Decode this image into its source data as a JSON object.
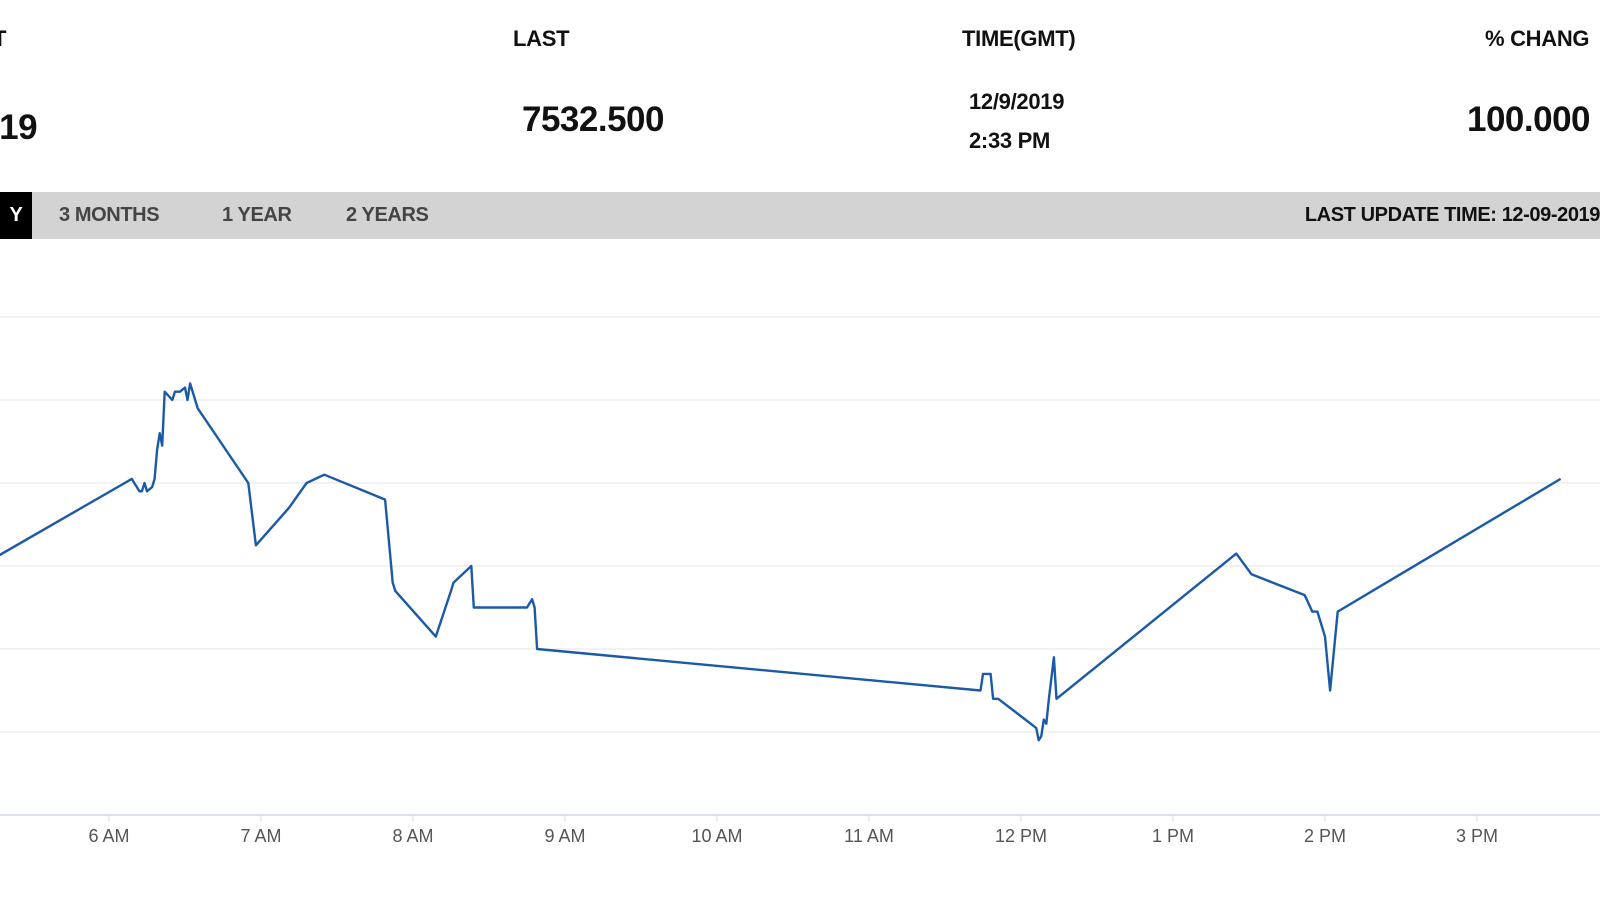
{
  "quote": {
    "columns": [
      {
        "header": "T",
        "value": ":19"
      },
      {
        "header": "LAST",
        "value": "7532.500"
      },
      {
        "header": "TIME(GMT)",
        "date": "12/9/2019",
        "time": "2:33 PM"
      },
      {
        "header": "% CHANG",
        "value": "100.000"
      }
    ]
  },
  "tabs": {
    "items": [
      "Y",
      "3 MONTHS",
      "1 YEAR",
      "2 YEARS"
    ],
    "active_index": 0
  },
  "last_update": "LAST UPDATE TIME: 12-09-2019",
  "colors": {
    "line": "#1a5aa6",
    "grid": "#e6e6e6",
    "tabbar": "#d3d3d3",
    "active_tab": "#000000"
  },
  "chart_data": {
    "type": "line",
    "title": "",
    "xlabel": "",
    "ylabel": "",
    "grid": true,
    "x_ticks": [
      "6 AM",
      "7 AM",
      "8 AM",
      "9 AM",
      "10 AM",
      "11 AM",
      "12 PM",
      "1 PM",
      "2 PM",
      "3 PM"
    ],
    "y_unit_note": "",
    "ylim": [
      0,
      6
    ],
    "series": [
      {
        "x": [
          "05:15",
          "06:09",
          "06:10",
          "06:11",
          "06:12",
          "06:13",
          "06:14",
          "06:15",
          "06:17",
          "06:18",
          "06:19",
          "06:20",
          "06:21",
          "06:22",
          "06:25",
          "06:26",
          "06:27",
          "06:28",
          "06:30",
          "06:31",
          "06:32",
          "06:35",
          "06:55",
          "06:58",
          "07:11",
          "07:18",
          "07:25",
          "07:49",
          "07:52",
          "07:53",
          "08:09",
          "08:15",
          "08:16",
          "08:23",
          "08:24",
          "08:45",
          "08:46",
          "08:47",
          "08:48",
          "08:49",
          "11:44",
          "11:45",
          "11:48",
          "11:49",
          "11:51",
          "12:06",
          "12:07",
          "12:08",
          "12:09",
          "12:10",
          "12:11",
          "12:13",
          "12:14",
          "13:25",
          "13:31",
          "13:52",
          "13:55",
          "13:57",
          "14:00",
          "14:02",
          "14:05",
          "15:33"
        ],
        "y": [
          3.1,
          4.05,
          4.0,
          3.95,
          3.9,
          3.9,
          4.0,
          3.9,
          3.95,
          4.05,
          4.4,
          4.6,
          4.45,
          5.1,
          5.0,
          5.1,
          5.1,
          5.1,
          5.15,
          5.0,
          5.2,
          4.9,
          4.0,
          3.25,
          3.7,
          4.0,
          4.1,
          3.8,
          2.8,
          2.7,
          2.15,
          2.7,
          2.8,
          3.0,
          2.5,
          2.5,
          2.55,
          2.6,
          2.5,
          2.0,
          1.5,
          1.7,
          1.7,
          1.4,
          1.4,
          1.05,
          0.9,
          0.95,
          1.15,
          1.1,
          1.4,
          1.9,
          1.4,
          3.15,
          2.9,
          2.65,
          2.45,
          2.45,
          2.15,
          1.5,
          2.45,
          4.05
        ]
      }
    ]
  }
}
